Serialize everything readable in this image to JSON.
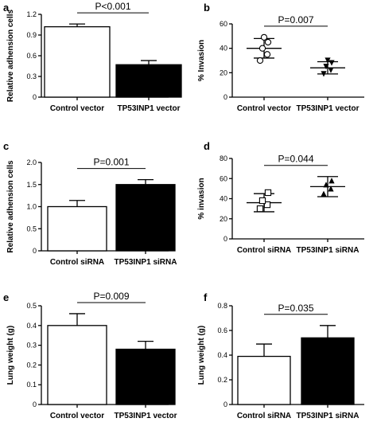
{
  "chart_data": [
    {
      "label": "a",
      "type": "bar",
      "ylabel": "Relative adhension cells",
      "categories": [
        "Control vector",
        "TP53INP1 vector"
      ],
      "values": [
        1.02,
        0.47
      ],
      "errors": [
        0.04,
        0.06
      ],
      "fills": [
        "#ffffff",
        "#000000"
      ],
      "ylim": [
        0,
        1.2
      ],
      "yticks": [
        0,
        0.3,
        0.6,
        0.9,
        1.2
      ],
      "yticklabels": [
        "0",
        "0.3",
        "0.6",
        "0.9",
        "1.2"
      ],
      "pvalue": "P<0.001"
    },
    {
      "label": "b",
      "type": "scatter",
      "ylabel": "% Invasion",
      "categories": [
        "Control vector",
        "TP53INP1 vector"
      ],
      "points": [
        [
          30,
          35,
          40,
          45,
          49
        ],
        [
          19,
          22,
          25,
          28,
          30
        ]
      ],
      "markers": [
        "circle-open",
        "triangle-down"
      ],
      "means": [
        40,
        24
      ],
      "sds": [
        8,
        5
      ],
      "ylim": [
        0,
        60
      ],
      "yticks": [
        0,
        20,
        40,
        60
      ],
      "yticklabels": [
        "0",
        "20",
        "40",
        "60"
      ],
      "pvalue": "P=0.007"
    },
    {
      "label": "c",
      "type": "bar",
      "ylabel": "Relative adhension cells",
      "categories": [
        "Control siRNA",
        "TP53INP1 siRNA"
      ],
      "values": [
        1.0,
        1.5
      ],
      "errors": [
        0.14,
        0.11
      ],
      "fills": [
        "#ffffff",
        "#000000"
      ],
      "ylim": [
        0,
        2.0
      ],
      "yticks": [
        0,
        0.5,
        1.0,
        1.5,
        2.0
      ],
      "yticklabels": [
        "0",
        "0.5",
        "1.0",
        "1.5",
        "2.0"
      ],
      "pvalue": "P=0.001"
    },
    {
      "label": "d",
      "type": "scatter",
      "ylabel": "% invasion",
      "categories": [
        "Control siRNA",
        "TP53INP1 siRNA"
      ],
      "points": [
        [
          30,
          34,
          38,
          46
        ],
        [
          45,
          50,
          54,
          58
        ]
      ],
      "markers": [
        "square-open",
        "triangle-up"
      ],
      "means": [
        36,
        52
      ],
      "sds": [
        9,
        10
      ],
      "ylim": [
        0,
        80
      ],
      "yticks": [
        0,
        20,
        40,
        60,
        80
      ],
      "yticklabels": [
        "0",
        "20",
        "40",
        "60",
        "80"
      ],
      "pvalue": "P=0.044"
    },
    {
      "label": "e",
      "type": "bar",
      "ylabel": "Lung weight (g)",
      "categories": [
        "Control vector",
        "TP53INP1 vector"
      ],
      "values": [
        0.4,
        0.28
      ],
      "errors": [
        0.06,
        0.04
      ],
      "fills": [
        "#ffffff",
        "#000000"
      ],
      "ylim": [
        0,
        0.5
      ],
      "yticks": [
        0,
        0.1,
        0.2,
        0.3,
        0.4,
        0.5
      ],
      "yticklabels": [
        "0",
        "0.1",
        "0.2",
        "0.3",
        "0.4",
        "0.5"
      ],
      "pvalue": "P=0.009"
    },
    {
      "label": "f",
      "type": "bar",
      "ylabel": "Lung weight (g)",
      "categories": [
        "Control siRNA",
        "TP53INP1 siRNA"
      ],
      "values": [
        0.39,
        0.54
      ],
      "errors": [
        0.1,
        0.1
      ],
      "fills": [
        "#ffffff",
        "#000000"
      ],
      "ylim": [
        0,
        0.8
      ],
      "yticks": [
        0,
        0.2,
        0.4,
        0.6,
        0.8
      ],
      "yticklabels": [
        "0",
        "0.2",
        "0.4",
        "0.6",
        "0.8"
      ],
      "pvalue": "P=0.035"
    }
  ]
}
